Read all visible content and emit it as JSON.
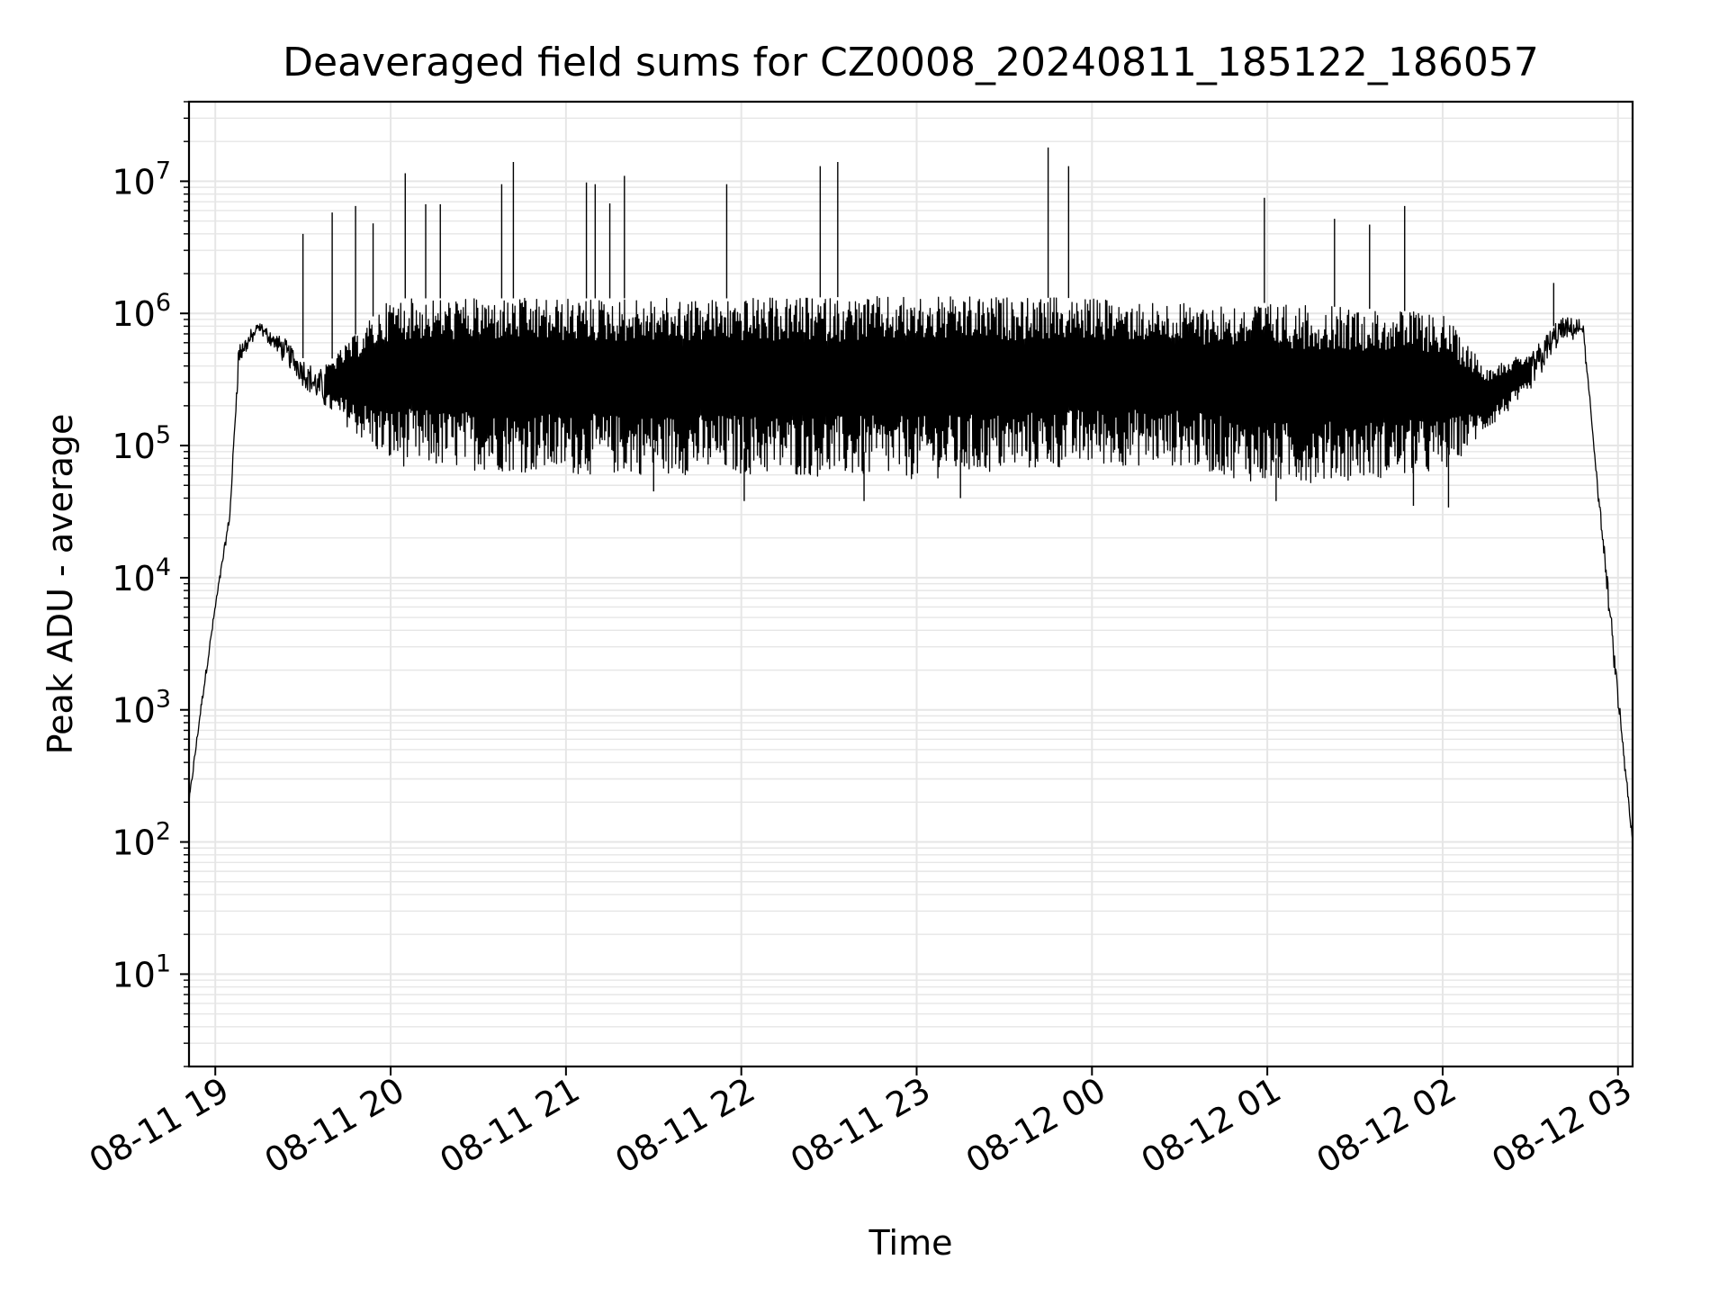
{
  "chart_data": {
    "type": "line",
    "title": "Deaveraged field sums for CZ0008_20240811_185122_186057",
    "xlabel": "Time",
    "ylabel": "Peak ADU - average",
    "x_axis": {
      "ticks": [
        "08-11 19",
        "08-11 20",
        "08-11 21",
        "08-11 22",
        "08-11 23",
        "08-12 00",
        "08-12 01",
        "08-12 02",
        "08-12 03"
      ],
      "range": [
        "2024-08-11 18:51",
        "2024-08-12 03:05"
      ]
    },
    "y_axis": {
      "scale": "log",
      "ylim": [
        2,
        40000000
      ],
      "ticks": [
        {
          "base": "10",
          "exp": "1"
        },
        {
          "base": "10",
          "exp": "2"
        },
        {
          "base": "10",
          "exp": "3"
        },
        {
          "base": "10",
          "exp": "4"
        },
        {
          "base": "10",
          "exp": "5"
        },
        {
          "base": "10",
          "exp": "6"
        },
        {
          "base": "10",
          "exp": "7"
        }
      ]
    },
    "grid": {
      "major": true,
      "minor": true
    },
    "line_color": "#000000",
    "grid_color": "#e6e6e6",
    "series": [
      {
        "envelope": {
          "x": [
            "2024-08-11 18:51",
            "2024-08-11 18:55",
            "2024-08-11 19:00",
            "2024-08-11 19:05",
            "2024-08-11 19:08",
            "2024-08-11 19:15",
            "2024-08-11 19:25",
            "2024-08-11 19:35",
            "2024-08-11 20:00",
            "2024-08-11 21:00",
            "2024-08-11 22:00",
            "2024-08-11 23:00",
            "2024-08-12 00:00",
            "2024-08-12 00:30",
            "2024-08-12 01:00",
            "2024-08-12 01:30",
            "2024-08-12 02:00",
            "2024-08-12 02:15",
            "2024-08-12 02:30",
            "2024-08-12 02:40",
            "2024-08-12 02:48",
            "2024-08-12 02:55",
            "2024-08-12 03:00",
            "2024-08-12 03:05"
          ],
          "lower": [
            200,
            1000,
            6000,
            30000,
            400000,
            750000,
            400000,
            220000,
            70000,
            60000,
            60000,
            55000,
            70000,
            70000,
            50000,
            55000,
            60000,
            130000,
            250000,
            600000,
            700000,
            15000,
            1000,
            100
          ],
          "upper": [
            200,
            1000,
            6000,
            30000,
            600000,
            820000,
            600000,
            350000,
            1300000,
            1300000,
            1300000,
            1350000,
            1300000,
            1200000,
            1200000,
            1100000,
            1000000,
            400000,
            500000,
            900000,
            850000,
            20000,
            1500,
            100
          ]
        },
        "spikes": [
          {
            "x": "2024-08-11 19:30",
            "y": 4000000
          },
          {
            "x": "2024-08-11 19:40",
            "y": 5800000
          },
          {
            "x": "2024-08-11 19:48",
            "y": 6500000
          },
          {
            "x": "2024-08-11 19:54",
            "y": 4800000
          },
          {
            "x": "2024-08-11 20:05",
            "y": 11500000
          },
          {
            "x": "2024-08-11 20:12",
            "y": 6700000
          },
          {
            "x": "2024-08-11 20:17",
            "y": 6700000
          },
          {
            "x": "2024-08-11 20:38",
            "y": 9500000
          },
          {
            "x": "2024-08-11 20:42",
            "y": 14000000
          },
          {
            "x": "2024-08-11 21:07",
            "y": 9800000
          },
          {
            "x": "2024-08-11 21:10",
            "y": 9500000
          },
          {
            "x": "2024-08-11 21:15",
            "y": 6800000
          },
          {
            "x": "2024-08-11 21:20",
            "y": 11000000
          },
          {
            "x": "2024-08-11 21:55",
            "y": 9500000
          },
          {
            "x": "2024-08-11 22:27",
            "y": 13000000
          },
          {
            "x": "2024-08-11 22:33",
            "y": 14000000
          },
          {
            "x": "2024-08-11 23:45",
            "y": 18000000
          },
          {
            "x": "2024-08-11 23:52",
            "y": 13000000
          },
          {
            "x": "2024-08-12 00:59",
            "y": 7500000
          },
          {
            "x": "2024-08-12 01:23",
            "y": 5200000
          },
          {
            "x": "2024-08-12 01:35",
            "y": 4700000
          },
          {
            "x": "2024-08-12 01:47",
            "y": 6500000
          },
          {
            "x": "2024-08-12 02:38",
            "y": 1700000
          }
        ],
        "dips": [
          {
            "x": "2024-08-11 21:30",
            "y": 45000
          },
          {
            "x": "2024-08-11 22:01",
            "y": 38000
          },
          {
            "x": "2024-08-11 22:42",
            "y": 38000
          },
          {
            "x": "2024-08-11 23:15",
            "y": 40000
          },
          {
            "x": "2024-08-12 01:03",
            "y": 38000
          },
          {
            "x": "2024-08-12 01:50",
            "y": 35000
          },
          {
            "x": "2024-08-12 02:02",
            "y": 34000
          }
        ]
      }
    ]
  }
}
